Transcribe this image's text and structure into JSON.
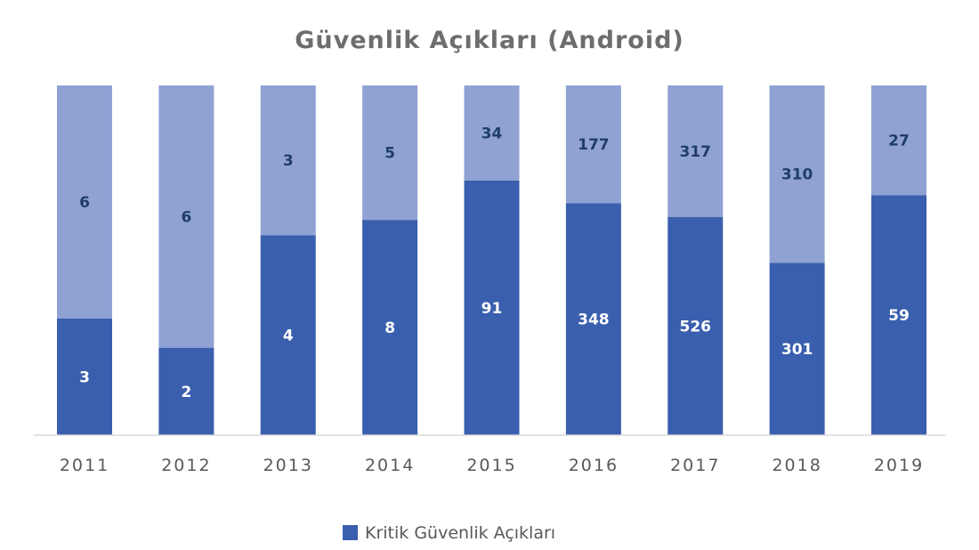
{
  "chart_data": {
    "type": "bar",
    "stacked": true,
    "percent_stacked": true,
    "title": "Güvenlik Açıkları (Android)",
    "categories": [
      "2011",
      "2012",
      "2013",
      "2014",
      "2015",
      "2016",
      "2017",
      "2018",
      "2019"
    ],
    "series": [
      {
        "name": "Kritik Güvenlik Açıkları",
        "values": [
          3,
          2,
          4,
          8,
          91,
          348,
          526,
          301,
          59
        ],
        "color": "#3a5fae"
      },
      {
        "values": [
          6,
          6,
          3,
          5,
          34,
          177,
          317,
          310,
          27
        ],
        "color": "#8fa2d3"
      }
    ],
    "legend": {
      "position": "bottom",
      "entries": [
        "Kritik Güvenlik Açıkları"
      ]
    },
    "grid": false
  }
}
